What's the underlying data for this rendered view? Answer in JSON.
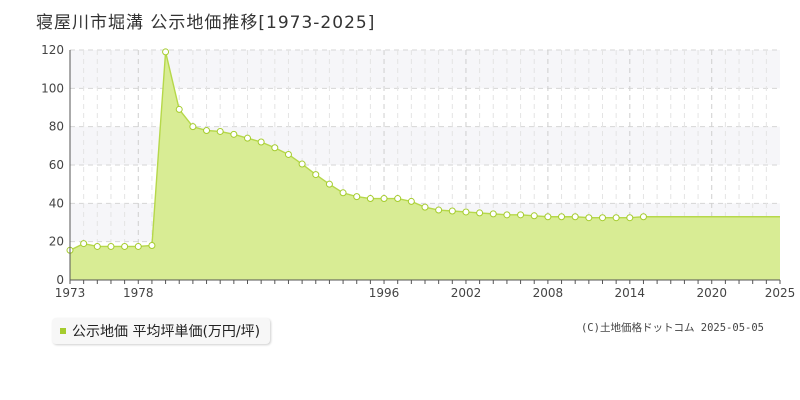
{
  "title": "寝屋川市堀溝 公示地価推移[1973-2025]",
  "legend": {
    "label": "公示地価 平均坪単価(万円/坪)",
    "color": "#a5cc2e"
  },
  "credit": "(C)土地価格ドットコム 2025-05-05",
  "colors": {
    "fill": "#d8ec94",
    "line": "#b6d84a",
    "marker_stroke": "#a5cc2e",
    "marker_fill": "#ffffff",
    "band": "#f6f6f9"
  },
  "chart_data": {
    "type": "area",
    "x_ticks": [
      1973,
      1978,
      1996,
      2002,
      2008,
      2014,
      2020,
      2025
    ],
    "y_ticks": [
      0,
      20,
      40,
      60,
      80,
      100,
      120
    ],
    "ylim": [
      0,
      120
    ],
    "grid": true,
    "legend_placement": "bottom-left",
    "series": [
      {
        "name": "公示地価 平均坪単価(万円/坪)",
        "points": [
          [
            1973,
            15.5
          ],
          [
            1974,
            19
          ],
          [
            1975,
            17.5
          ],
          [
            1976,
            17.5
          ],
          [
            1977,
            17.5
          ],
          [
            1978,
            17.5
          ],
          [
            1979,
            18
          ],
          [
            1980,
            119
          ],
          [
            1981,
            89
          ],
          [
            1982,
            80
          ],
          [
            1983,
            78
          ],
          [
            1984,
            77.5
          ],
          [
            1985,
            76
          ],
          [
            1986,
            74
          ],
          [
            1987,
            72
          ],
          [
            1988,
            69
          ],
          [
            1989,
            65.5
          ],
          [
            1990,
            60.5
          ],
          [
            1991,
            55
          ],
          [
            1992,
            50
          ],
          [
            1993,
            45.5
          ],
          [
            1994,
            43.5
          ],
          [
            1995,
            42.5
          ],
          [
            1996,
            42.5
          ],
          [
            1997,
            42.5
          ],
          [
            1998,
            41
          ],
          [
            1999,
            38
          ],
          [
            2000,
            36.5
          ],
          [
            2001,
            36
          ],
          [
            2002,
            35.5
          ],
          [
            2003,
            35
          ],
          [
            2004,
            34.5
          ],
          [
            2005,
            34
          ],
          [
            2006,
            34
          ],
          [
            2007,
            33.5
          ],
          [
            2008,
            33
          ],
          [
            2009,
            33
          ],
          [
            2010,
            33
          ],
          [
            2011,
            32.5
          ],
          [
            2012,
            32.5
          ],
          [
            2013,
            32.5
          ],
          [
            2014,
            32.5
          ],
          [
            2015,
            33
          ]
        ]
      }
    ]
  }
}
